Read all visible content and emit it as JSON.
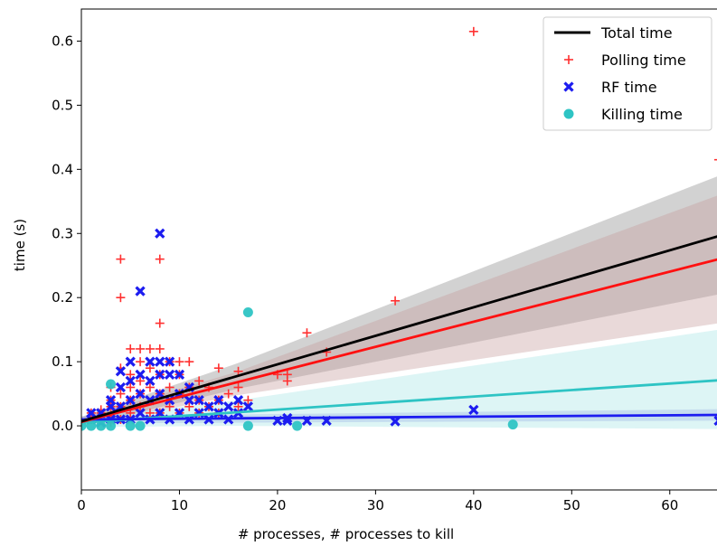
{
  "chart_data": {
    "type": "scatter",
    "xlabel": "# processes, # processes to kill",
    "ylabel": "time (s)",
    "xlim": [
      0,
      65
    ],
    "ylim": [
      -0.1,
      0.65
    ],
    "xticks": [
      0,
      10,
      20,
      30,
      40,
      50,
      60
    ],
    "yticks": [
      0.0,
      0.1,
      0.2,
      0.3,
      0.4,
      0.5,
      0.6
    ],
    "legend_position": "top-right",
    "series": [
      {
        "name": "Total time",
        "kind": "regression-line",
        "color": "#000000",
        "line": [
          [
            0,
            0.007
          ],
          [
            65,
            0.296
          ]
        ],
        "band_inner": [
          [
            0,
            0.0,
            0.014
          ],
          [
            16,
            0.058,
            0.098
          ],
          [
            65,
            0.205,
            0.39
          ]
        ],
        "band_color": "#888888"
      },
      {
        "name": "Polling time",
        "kind": "scatter",
        "marker": "plus",
        "color": "#ff3030",
        "line": [
          [
            0,
            0.006
          ],
          [
            65,
            0.26
          ]
        ],
        "band_inner": [
          [
            0,
            0.0,
            0.012
          ],
          [
            16,
            0.048,
            0.085
          ],
          [
            65,
            0.16,
            0.36
          ]
        ],
        "band_color": "#c49a9a",
        "points": [
          [
            1,
            0.01
          ],
          [
            1,
            0.02
          ],
          [
            2,
            0.01
          ],
          [
            2,
            0.02
          ],
          [
            2,
            0.025
          ],
          [
            3,
            0.005
          ],
          [
            3,
            0.015
          ],
          [
            3,
            0.03
          ],
          [
            3,
            0.04
          ],
          [
            3,
            0.06
          ],
          [
            4,
            0.01
          ],
          [
            4,
            0.03
          ],
          [
            4,
            0.05
          ],
          [
            4,
            0.09
          ],
          [
            4,
            0.2
          ],
          [
            4,
            0.26
          ],
          [
            5,
            0.02
          ],
          [
            5,
            0.04
          ],
          [
            5,
            0.06
          ],
          [
            5,
            0.08
          ],
          [
            5,
            0.12
          ],
          [
            6,
            0.03
          ],
          [
            6,
            0.05
          ],
          [
            6,
            0.07
          ],
          [
            6,
            0.1
          ],
          [
            6,
            0.12
          ],
          [
            7,
            0.02
          ],
          [
            7,
            0.06
          ],
          [
            7,
            0.09
          ],
          [
            7,
            0.12
          ],
          [
            8,
            0.02
          ],
          [
            8,
            0.05
          ],
          [
            8,
            0.08
          ],
          [
            8,
            0.12
          ],
          [
            8,
            0.16
          ],
          [
            8,
            0.26
          ],
          [
            9,
            0.03
          ],
          [
            9,
            0.06
          ],
          [
            9,
            0.1
          ],
          [
            10,
            0.02
          ],
          [
            10,
            0.05
          ],
          [
            10,
            0.08
          ],
          [
            10,
            0.1
          ],
          [
            11,
            0.03
          ],
          [
            11,
            0.06
          ],
          [
            11,
            0.1
          ],
          [
            12,
            0.02
          ],
          [
            12,
            0.04
          ],
          [
            12,
            0.07
          ],
          [
            13,
            0.03
          ],
          [
            13,
            0.06
          ],
          [
            14,
            0.02
          ],
          [
            14,
            0.04
          ],
          [
            14,
            0.09
          ],
          [
            15,
            0.05
          ],
          [
            16,
            0.03
          ],
          [
            16,
            0.06
          ],
          [
            16,
            0.085
          ],
          [
            17,
            0.04
          ],
          [
            20,
            0.08
          ],
          [
            21,
            0.07
          ],
          [
            21,
            0.08
          ],
          [
            23,
            0.145
          ],
          [
            25,
            0.115
          ],
          [
            32,
            0.195
          ],
          [
            40,
            0.615
          ],
          [
            65,
            0.415
          ]
        ]
      },
      {
        "name": "RF time",
        "kind": "scatter",
        "marker": "x",
        "color": "#1c1cf0",
        "line": [
          [
            0,
            0.01
          ],
          [
            65,
            0.017
          ]
        ],
        "band_inner": [
          [
            0,
            0.004,
            0.015
          ],
          [
            65,
            0.008,
            0.026
          ]
        ],
        "band_color": "#9a9ae6",
        "points": [
          [
            1,
            0.01
          ],
          [
            1,
            0.02
          ],
          [
            2,
            0.005
          ],
          [
            2,
            0.02
          ],
          [
            3,
            0.01
          ],
          [
            3,
            0.03
          ],
          [
            3,
            0.04
          ],
          [
            4,
            0.01
          ],
          [
            4,
            0.03
          ],
          [
            4,
            0.06
          ],
          [
            4,
            0.085
          ],
          [
            5,
            0.01
          ],
          [
            5,
            0.04
          ],
          [
            5,
            0.07
          ],
          [
            5,
            0.1
          ],
          [
            6,
            0.02
          ],
          [
            6,
            0.05
          ],
          [
            6,
            0.08
          ],
          [
            6,
            0.21
          ],
          [
            7,
            0.01
          ],
          [
            7,
            0.04
          ],
          [
            7,
            0.07
          ],
          [
            7,
            0.1
          ],
          [
            8,
            0.02
          ],
          [
            8,
            0.05
          ],
          [
            8,
            0.08
          ],
          [
            8,
            0.1
          ],
          [
            8,
            0.3
          ],
          [
            9,
            0.01
          ],
          [
            9,
            0.04
          ],
          [
            9,
            0.08
          ],
          [
            9,
            0.1
          ],
          [
            10,
            0.02
          ],
          [
            10,
            0.05
          ],
          [
            10,
            0.08
          ],
          [
            11,
            0.01
          ],
          [
            11,
            0.04
          ],
          [
            11,
            0.06
          ],
          [
            12,
            0.02
          ],
          [
            12,
            0.04
          ],
          [
            13,
            0.01
          ],
          [
            13,
            0.03
          ],
          [
            14,
            0.02
          ],
          [
            14,
            0.04
          ],
          [
            15,
            0.01
          ],
          [
            15,
            0.03
          ],
          [
            16,
            0.02
          ],
          [
            16,
            0.04
          ],
          [
            17,
            0.03
          ],
          [
            20,
            0.008
          ],
          [
            21,
            0.008
          ],
          [
            21,
            0.012
          ],
          [
            23,
            0.008
          ],
          [
            25,
            0.008
          ],
          [
            32,
            0.007
          ],
          [
            40,
            0.025
          ],
          [
            65,
            0.008
          ]
        ]
      },
      {
        "name": "Killing time",
        "kind": "scatter",
        "marker": "circle",
        "color": "#2ec4c4",
        "line": [
          [
            0,
            0.005
          ],
          [
            65,
            0.071
          ]
        ],
        "band_inner": [
          [
            0,
            -0.002,
            0.012
          ],
          [
            16,
            0.0,
            0.04
          ],
          [
            65,
            -0.005,
            0.15
          ]
        ],
        "band_color": "#a6e6e6",
        "points": [
          [
            0,
            0.0
          ],
          [
            1,
            0.0
          ],
          [
            2,
            0.0
          ],
          [
            3,
            0.0
          ],
          [
            3,
            0.065
          ],
          [
            5,
            0.0
          ],
          [
            6,
            0.0
          ],
          [
            17,
            0.177
          ],
          [
            17,
            0.0
          ],
          [
            22,
            0.0
          ],
          [
            44,
            0.002
          ]
        ]
      }
    ]
  }
}
